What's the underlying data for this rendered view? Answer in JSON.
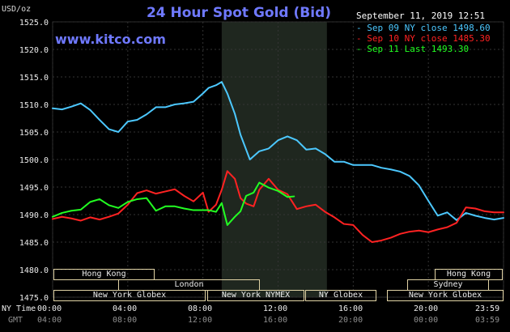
{
  "header": {
    "title": "24 Hour Spot Gold (Bid)",
    "unit": "USD/oz",
    "site": "www.kitco.com",
    "datestamp": "September 11, 2019 12:51"
  },
  "legend": [
    {
      "label": "Sep 09 NY close 1498.60",
      "color": "#4cc8ff"
    },
    {
      "label": "Sep 10 NY close 1485.30",
      "color": "#ff2222"
    },
    {
      "label": "Sep 11 Last 1493.30",
      "color": "#22ff22"
    }
  ],
  "axes": {
    "y_ticks": [
      "1525.0",
      "1520.0",
      "1515.0",
      "1510.0",
      "1505.0",
      "1500.0",
      "1495.0",
      "1490.0",
      "1485.0",
      "1480.0",
      "1475.0"
    ],
    "x_label_primary": "NY Time",
    "x_label_secondary": "GMT",
    "x_ticks_ny": [
      "00:00",
      "04:00",
      "08:00",
      "12:00",
      "16:00",
      "20:00",
      "23:59"
    ],
    "x_ticks_gmt": [
      "04:00",
      "08:00",
      "12:00",
      "16:00",
      "20:00",
      "00:00",
      "03:59"
    ]
  },
  "sessions": [
    {
      "label": "Hong Kong"
    },
    {
      "label": "London"
    },
    {
      "label": "New York Globex"
    },
    {
      "label": "New York NYMEX"
    },
    {
      "label": "NY Globex"
    },
    {
      "label": "Hong Kong"
    },
    {
      "label": "Sydney"
    },
    {
      "label": "New York Globex"
    }
  ],
  "chart_data": {
    "type": "line",
    "title": "24 Hour Spot Gold (Bid)",
    "ylabel": "USD/oz",
    "ylim": [
      1475,
      1525
    ],
    "x_unit": "hours",
    "xlim": [
      0,
      24
    ],
    "grid": true,
    "legend_position": "top-right",
    "series": [
      {
        "name": "Sep 09 NY close 1498.60",
        "color": "#4cc8ff",
        "x": [
          0,
          0.5,
          1,
          1.5,
          2,
          2.5,
          3,
          3.5,
          4,
          4.5,
          5,
          5.5,
          6,
          6.5,
          7,
          7.5,
          8,
          8.3,
          8.7,
          9,
          9.3,
          9.7,
          10,
          10.5,
          11,
          11.5,
          12,
          12.5,
          13,
          13.5,
          14,
          14.5,
          15,
          15.5,
          16,
          16.5,
          17,
          17.5,
          18,
          18.5,
          19,
          19.5,
          20,
          20.5,
          21,
          21.5,
          22,
          22.5,
          23,
          23.5,
          24
        ],
        "y": [
          1509.3,
          1509.1,
          1509.6,
          1510.2,
          1509.0,
          1507.2,
          1505.5,
          1505.0,
          1506.9,
          1507.2,
          1508.2,
          1509.5,
          1509.5,
          1510.0,
          1510.2,
          1510.5,
          1512.0,
          1513.0,
          1513.5,
          1514.1,
          1512.0,
          1508.3,
          1504.5,
          1500.0,
          1501.5,
          1502.0,
          1503.5,
          1504.2,
          1503.5,
          1501.8,
          1502.0,
          1501.0,
          1499.6,
          1499.6,
          1499.0,
          1499.0,
          1499.0,
          1498.5,
          1498.2,
          1497.8,
          1497.0,
          1495.3,
          1492.5,
          1489.8,
          1490.4,
          1489.0,
          1490.3,
          1489.8,
          1489.4,
          1489.1,
          1489.4
        ]
      },
      {
        "name": "Sep 10 NY close 1485.30",
        "color": "#ff2222",
        "x": [
          0,
          0.5,
          1,
          1.5,
          2,
          2.5,
          3,
          3.5,
          4,
          4.5,
          5,
          5.5,
          6,
          6.5,
          7,
          7.5,
          8,
          8.3,
          8.7,
          9,
          9.3,
          9.7,
          10,
          10.3,
          10.7,
          11,
          11.5,
          12,
          12.5,
          13,
          13.5,
          14,
          14.5,
          15,
          15.5,
          16,
          16.5,
          17,
          17.5,
          18,
          18.5,
          19,
          19.5,
          20,
          20.5,
          21,
          21.5,
          22,
          22.5,
          23,
          23.5,
          24
        ],
        "y": [
          1489.2,
          1489.6,
          1489.3,
          1488.9,
          1489.5,
          1489.1,
          1489.6,
          1490.2,
          1491.8,
          1493.9,
          1494.4,
          1493.8,
          1494.2,
          1494.6,
          1493.4,
          1492.4,
          1494.0,
          1490.5,
          1491.8,
          1494.5,
          1497.9,
          1496.5,
          1493.0,
          1492.0,
          1491.5,
          1494.5,
          1496.5,
          1494.5,
          1493.7,
          1491.0,
          1491.5,
          1491.8,
          1490.5,
          1489.5,
          1488.3,
          1488.1,
          1486.3,
          1485.0,
          1485.3,
          1485.8,
          1486.5,
          1486.9,
          1487.1,
          1486.8,
          1487.3,
          1487.7,
          1488.5,
          1491.3,
          1491.1,
          1490.6,
          1490.4,
          1490.4
        ]
      },
      {
        "name": "Sep 11 Last 1493.30",
        "color": "#22ff22",
        "x": [
          0,
          0.5,
          1,
          1.5,
          2,
          2.5,
          3,
          3.5,
          4,
          4.5,
          5,
          5.5,
          6,
          6.5,
          7,
          7.5,
          8,
          8.3,
          8.7,
          9,
          9.3,
          9.7,
          10,
          10.3,
          10.7,
          11,
          11.5,
          12,
          12.5,
          12.85
        ],
        "y": [
          1489.6,
          1490.3,
          1490.7,
          1490.9,
          1492.3,
          1492.8,
          1491.7,
          1491.2,
          1492.3,
          1492.8,
          1493.0,
          1490.7,
          1491.5,
          1491.5,
          1491.1,
          1490.8,
          1490.8,
          1490.8,
          1490.5,
          1492.1,
          1488.1,
          1489.6,
          1490.6,
          1493.4,
          1494.0,
          1495.8,
          1494.9,
          1494.3,
          1493.2,
          1493.3
        ]
      }
    ],
    "highlight_region": {
      "x": [
        9,
        14.6
      ]
    }
  }
}
